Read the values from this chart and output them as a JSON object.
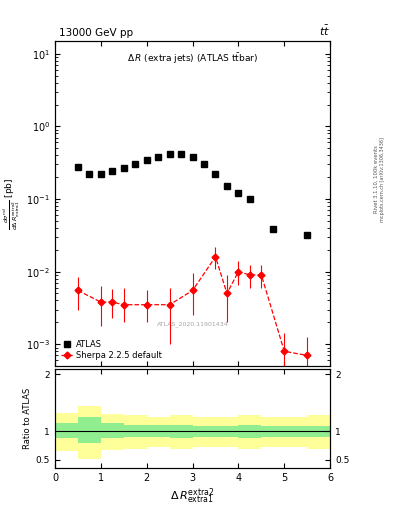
{
  "title_left": "13000 GeV pp",
  "title_right": "tt",
  "plot_title": "Δ R (extra jets) (ATLAS ttbar)",
  "watermark": "ATLAS_2020.11901434",
  "atlas_x": [
    0.5,
    0.75,
    1.0,
    1.25,
    1.5,
    1.75,
    2.0,
    2.25,
    2.5,
    2.75,
    3.0,
    3.25,
    3.5,
    3.75,
    4.0,
    4.25,
    4.75,
    5.5
  ],
  "atlas_y": [
    0.28,
    0.22,
    0.22,
    0.24,
    0.27,
    0.3,
    0.34,
    0.38,
    0.42,
    0.42,
    0.38,
    0.3,
    0.22,
    0.15,
    0.12,
    0.1,
    0.038,
    0.032
  ],
  "sherpa_x": [
    0.5,
    1.0,
    1.25,
    1.5,
    2.0,
    2.5,
    3.0,
    3.5,
    3.75,
    4.0,
    4.25,
    4.5,
    5.0,
    5.5
  ],
  "sherpa_y": [
    0.0055,
    0.0038,
    0.0038,
    0.0035,
    0.0035,
    0.0035,
    0.0055,
    0.016,
    0.005,
    0.01,
    0.009,
    0.009,
    0.0008,
    0.0007
  ],
  "sherpa_yerr_lo": [
    0.0025,
    0.002,
    0.0015,
    0.0015,
    0.0015,
    0.0025,
    0.003,
    0.005,
    0.003,
    0.0035,
    0.003,
    0.003,
    0.00055,
    0.0005
  ],
  "sherpa_yerr_hi": [
    0.003,
    0.0025,
    0.002,
    0.0025,
    0.002,
    0.0025,
    0.004,
    0.006,
    0.004,
    0.004,
    0.0035,
    0.0035,
    0.00065,
    0.00055
  ],
  "ratio_x_edges": [
    0.0,
    0.5,
    1.0,
    1.5,
    2.0,
    2.5,
    3.0,
    3.5,
    4.0,
    4.5,
    5.5,
    6.0
  ],
  "ratio_green_lo": [
    0.88,
    0.8,
    0.88,
    0.9,
    0.9,
    0.88,
    0.9,
    0.9,
    0.88,
    0.9,
    0.9,
    0.9
  ],
  "ratio_green_hi": [
    1.15,
    1.25,
    1.15,
    1.12,
    1.12,
    1.12,
    1.1,
    1.1,
    1.12,
    1.1,
    1.1,
    1.1
  ],
  "ratio_yellow_lo": [
    0.65,
    0.52,
    0.68,
    0.7,
    0.72,
    0.7,
    0.72,
    0.72,
    0.7,
    0.72,
    0.7,
    0.7
  ],
  "ratio_yellow_hi": [
    1.32,
    1.45,
    1.3,
    1.28,
    1.26,
    1.28,
    1.25,
    1.25,
    1.28,
    1.25,
    1.28,
    1.25
  ],
  "xlim": [
    0,
    6
  ],
  "main_ylim_lo": 0.0005,
  "main_ylim_hi": 15,
  "ratio_ylim_lo": 0.35,
  "ratio_ylim_hi": 2.1,
  "green_color": "#90EE90",
  "yellow_color": "#FFFF99",
  "atlas_color": "black",
  "sherpa_color": "red"
}
